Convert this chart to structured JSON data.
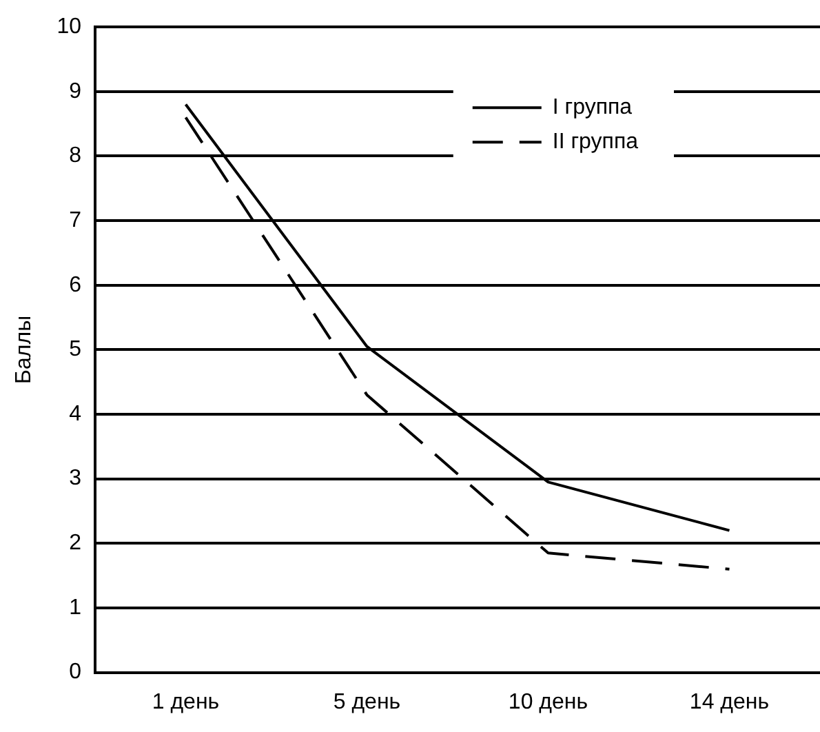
{
  "chart_data": {
    "type": "line",
    "ylabel": "Баллы",
    "categories": [
      "1 день",
      "5 день",
      "10 день",
      "14 день"
    ],
    "series": [
      {
        "name": "I группа",
        "color": "#000000",
        "line_style": "solid",
        "values": [
          8.8,
          5.05,
          2.95,
          2.2
        ]
      },
      {
        "name": "II группа",
        "color": "#000000",
        "line_style": "dashed",
        "values": [
          8.6,
          4.3,
          1.85,
          1.6
        ]
      }
    ],
    "ylim": [
      0,
      10
    ],
    "yticks": [
      0,
      1,
      2,
      3,
      4,
      5,
      6,
      7,
      8,
      9,
      10
    ],
    "grid": "y",
    "legend": "top right",
    "marker": "none"
  }
}
